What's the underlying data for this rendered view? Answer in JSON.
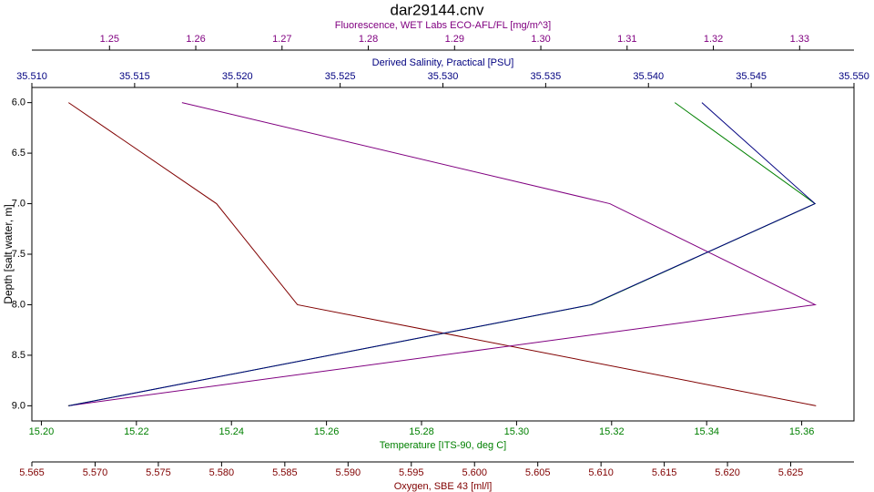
{
  "chart_data": {
    "type": "line",
    "title": "dar29144.cnv",
    "y_label": "Depth [salt water, m]",
    "y_inverted": true,
    "ylim": [
      5.85,
      9.15
    ],
    "yticks": [
      {
        "value": 6,
        "label": "6.0"
      },
      {
        "value": 6.5,
        "label": "6.5"
      },
      {
        "value": 7,
        "label": "7.0"
      },
      {
        "value": 7.5,
        "label": "7.5"
      },
      {
        "value": 8,
        "label": "8.0"
      },
      {
        "value": 8.5,
        "label": "8.5"
      },
      {
        "value": 9,
        "label": "9.0"
      }
    ],
    "y": [
      6,
      7,
      8,
      9
    ],
    "x_axes": [
      {
        "label": "Fluorescence, WET Labs ECO-AFL/FL [mg/m^3]",
        "color": "#800080",
        "side": "top",
        "xlim": [
          1.241,
          1.3363
        ],
        "xticks": [
          1.25,
          1.26,
          1.27,
          1.28,
          1.29,
          {
            "value": 1.3,
            "label": "1.30"
          },
          1.31,
          1.32,
          1.33
        ]
      },
      {
        "label": "Derived Salinity, Practical [PSU]",
        "color": "#000080",
        "side": "top",
        "xlim": [
          35.51,
          35.55
        ],
        "xticks": [
          {
            "value": 35.51,
            "label": "35.510"
          },
          35.515,
          {
            "value": 35.52,
            "label": "35.520"
          },
          35.525,
          {
            "value": 35.53,
            "label": "35.530"
          },
          35.535,
          {
            "value": 35.54,
            "label": "35.540"
          },
          35.545,
          {
            "value": 35.55,
            "label": "35.550"
          }
        ]
      },
      {
        "label": "Temperature [ITS-90, deg C]",
        "color": "#008000",
        "side": "bottom",
        "xlim": [
          15.198,
          15.371
        ],
        "xticks": [
          {
            "value": 15.2,
            "label": "15.20"
          },
          15.22,
          15.24,
          15.26,
          15.28,
          {
            "value": 15.3,
            "label": "15.30"
          },
          15.32,
          15.34,
          15.36
        ]
      },
      {
        "label": "Oxygen, SBE 43 [ml/l]",
        "color": "#800000",
        "side": "bottom",
        "xlim": [
          5.565,
          5.63
        ],
        "xticks": [
          5.565,
          {
            "value": 5.57,
            "label": "5.570"
          },
          5.575,
          {
            "value": 5.58,
            "label": "5.580"
          },
          5.585,
          {
            "value": 5.59,
            "label": "5.590"
          },
          5.595,
          {
            "value": 5.6,
            "label": "5.600"
          },
          5.605,
          {
            "value": 5.61,
            "label": "5.610"
          },
          5.615,
          {
            "value": 5.62,
            "label": "5.620"
          },
          5.625
        ]
      }
    ],
    "series": [
      {
        "axis": 3,
        "color": "#800000",
        "values": [
          5.5679,
          5.5796,
          5.586,
          5.627
        ]
      },
      {
        "axis": 0,
        "color": "#800080",
        "values": [
          1.2584,
          1.308,
          1.3318,
          1.2452
        ]
      },
      {
        "axis": 2,
        "color": "#008000",
        "values": [
          15.3333,
          15.3628,
          15.3158,
          15.2057
        ]
      },
      {
        "axis": 1,
        "color": "#000080",
        "values": [
          35.5426,
          35.5481,
          35.5372,
          35.5118
        ]
      }
    ]
  }
}
